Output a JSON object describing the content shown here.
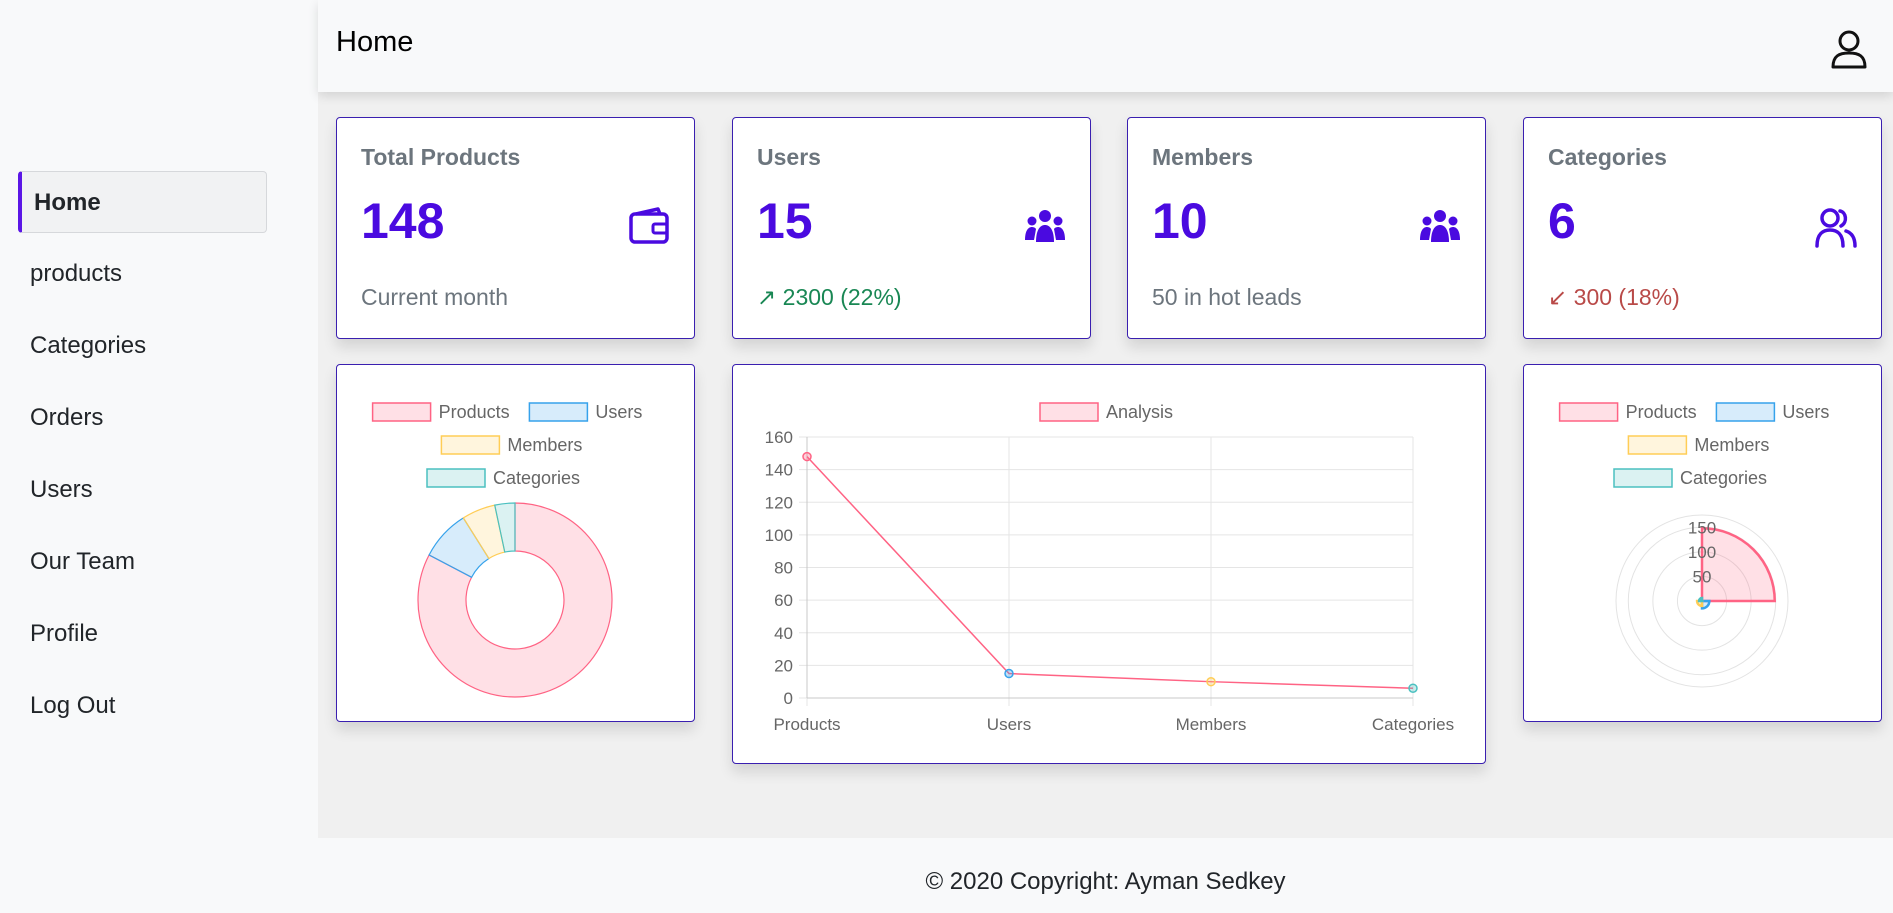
{
  "header": {
    "title": "Home"
  },
  "sidebar": {
    "items": [
      {
        "label": "Home"
      },
      {
        "label": "products"
      },
      {
        "label": "Categories"
      },
      {
        "label": "Orders"
      },
      {
        "label": "Users"
      },
      {
        "label": "Our Team"
      },
      {
        "label": "Profile"
      },
      {
        "label": "Log Out"
      }
    ]
  },
  "stats": [
    {
      "label": "Total Products",
      "value": "148",
      "sub": "Current month",
      "icon": "wallet-icon"
    },
    {
      "label": "Users",
      "value": "15",
      "sub": "↗ 2300 (22%)",
      "icon": "people-icon"
    },
    {
      "label": "Members",
      "value": "10",
      "sub": "50 in hot leads",
      "icon": "people-icon"
    },
    {
      "label": "Categories",
      "value": "6",
      "sub": "↙ 300 (18%)",
      "icon": "users-icon"
    }
  ],
  "colors": {
    "accent": "#4a0ae0",
    "up": "#198754",
    "down": "#b94a48"
  },
  "chart_data": [
    {
      "type": "pie",
      "style": "doughnut",
      "categories": [
        "Products",
        "Users",
        "Members",
        "Categories"
      ],
      "values": [
        148,
        15,
        10,
        6
      ],
      "legend": "top",
      "colors": [
        "#ff6384",
        "#36a2eb",
        "#ffcd56",
        "#4bc0c0"
      ]
    },
    {
      "type": "line",
      "categories": [
        "Products",
        "Users",
        "Members",
        "Categories"
      ],
      "series": [
        {
          "name": "Analysis",
          "values": [
            148,
            15,
            10,
            6
          ]
        }
      ],
      "ylim": [
        0,
        160
      ],
      "yticks": [
        "0",
        "20",
        "40",
        "60",
        "80",
        "100",
        "120",
        "140",
        "160"
      ],
      "grid": true,
      "legend": "top",
      "point_colors": [
        "#ff6384",
        "#36a2eb",
        "#ffcd56",
        "#4bc0c0"
      ]
    },
    {
      "type": "pie",
      "style": "polarArea",
      "categories": [
        "Products",
        "Users",
        "Members",
        "Categories"
      ],
      "values": [
        148,
        15,
        10,
        6
      ],
      "rticks": [
        "50",
        "100",
        "150"
      ],
      "legend": "top",
      "colors": [
        "#ff6384",
        "#36a2eb",
        "#ffcd56",
        "#4bc0c0"
      ]
    }
  ],
  "footer": {
    "text": "© 2020 Copyright:  Ayman Sedkey"
  }
}
